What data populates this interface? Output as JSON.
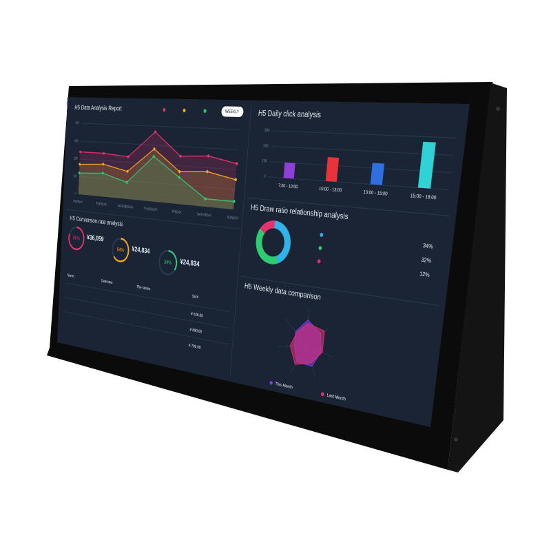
{
  "report": {
    "title": "H5 Data Analysis Report",
    "button": "WEEKLY",
    "ylim": [
      0,
      400
    ],
    "yticks": [
      0,
      100,
      200,
      300,
      400
    ],
    "x": [
      "MONDAY",
      "TUESDAY",
      "WEDNESDAY",
      "THURSDAY",
      "FRIDAY",
      "SATURDAY",
      "SUNDAY"
    ],
    "series": [
      {
        "color": "#e8326e",
        "values": [
          240,
          240,
          230,
          370,
          250,
          260,
          230
        ]
      },
      {
        "color": "#f5a623",
        "values": [
          170,
          180,
          150,
          280,
          170,
          180,
          150
        ]
      },
      {
        "color": "#2ecc71",
        "values": [
          120,
          130,
          90,
          240,
          140,
          40,
          40
        ]
      }
    ]
  },
  "conversion": {
    "title": "H5 Conversion rate analysis",
    "gauges": [
      {
        "value": 80,
        "label": "80%",
        "amount": "¥36,059",
        "color": "#e8326e"
      },
      {
        "value": 64,
        "label": "64%",
        "amount": "¥24,834",
        "color": "#f5a623"
      },
      {
        "value": 34,
        "label": "34%",
        "amount": "¥24,834",
        "color": "#2ecc71"
      }
    ]
  },
  "table": {
    "headers": [
      "Name",
      "Date time",
      "The stores",
      "Sum"
    ],
    "sums": [
      "¥ 646.00",
      "¥ 890.00",
      "¥ 786.00"
    ]
  },
  "clicks": {
    "title": "H5 Daily click analysis",
    "ylim": [
      0,
      300
    ],
    "yticks": [
      0,
      100,
      200,
      300
    ],
    "categories": [
      "7:00 - 10:00",
      "10:00 - 13:00",
      "13:00 - 15:00",
      "15:00 - 18:00"
    ],
    "values": [
      100,
      150,
      130,
      270
    ],
    "colors": [
      "#8e3fd6",
      "#e8333a",
      "#2f6fe0",
      "#2fd3d6"
    ]
  },
  "ratio": {
    "title": "H5 Draw ratio relationship analysis",
    "values": [
      34,
      32,
      12
    ],
    "value_labels": [
      "34%",
      "32%",
      "12%"
    ],
    "colors": [
      "#2fb3e8",
      "#2ecc71",
      "#e8326e"
    ]
  },
  "weekly": {
    "title": "H5 Weekly data comparison",
    "rmax": 100,
    "series": [
      {
        "name": "This Month",
        "color": "#7b3fe4",
        "values": [
          70,
          60,
          55,
          65,
          60,
          40,
          50
        ]
      },
      {
        "name": "Last Month",
        "color": "#e0307a",
        "values": [
          60,
          75,
          60,
          55,
          70,
          55,
          45
        ]
      }
    ]
  }
}
